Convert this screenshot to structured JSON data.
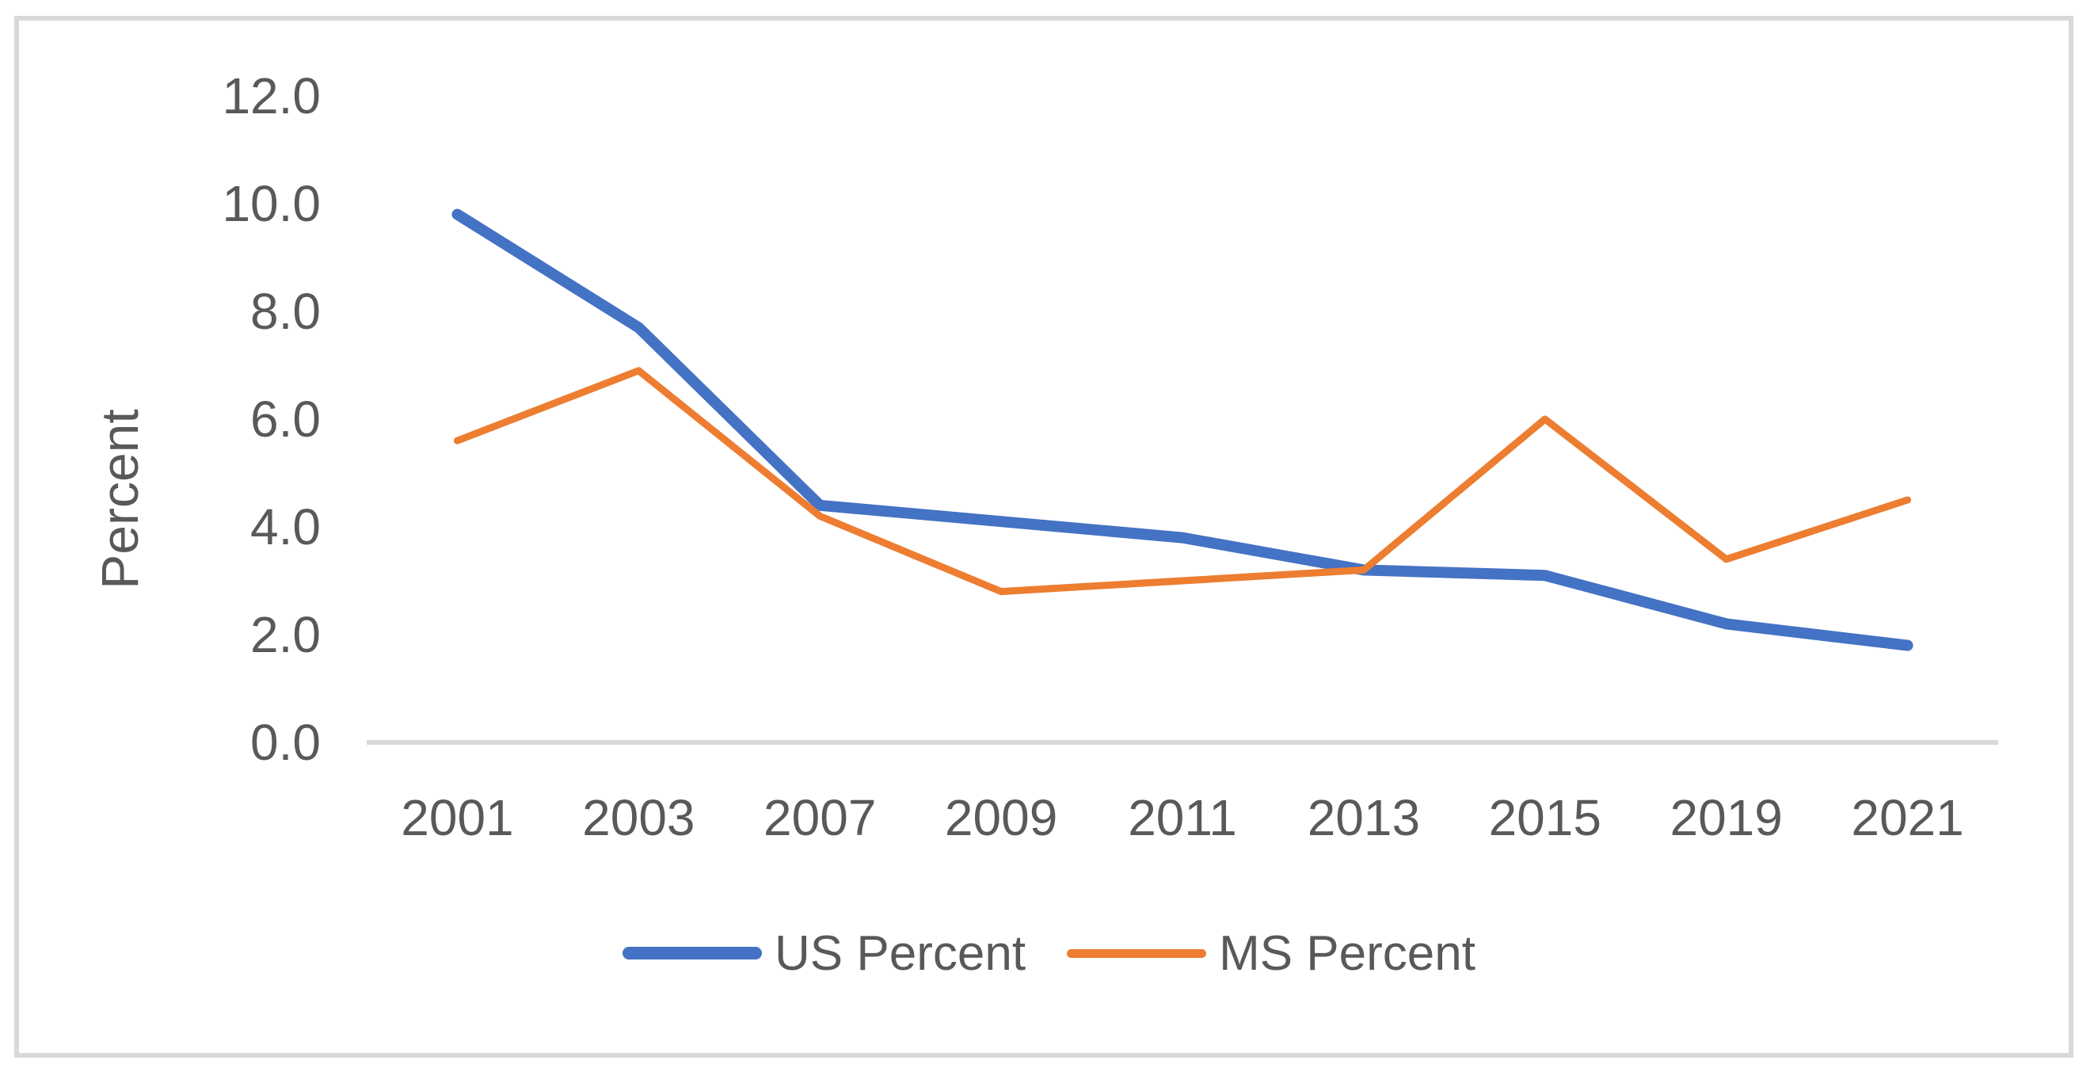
{
  "colors": {
    "background": "#FFFFFF",
    "frame_border": "#D9D9D9",
    "axis_line": "#D9D9D9",
    "text": "#595959",
    "us_series": "#4472C4",
    "ms_series": "#ED7D31"
  },
  "chart_data": {
    "type": "line",
    "title": "",
    "xlabel": "",
    "ylabel": "Percent",
    "categories": [
      "2001",
      "2003",
      "2007",
      "2009",
      "2011",
      "2013",
      "2015",
      "2019",
      "2021"
    ],
    "series": [
      {
        "name": "US Percent",
        "color": "#4472C4",
        "stroke_width": 14,
        "values": [
          9.8,
          7.7,
          4.4,
          4.1,
          3.8,
          3.2,
          3.1,
          2.2,
          1.8
        ]
      },
      {
        "name": "MS Percent",
        "color": "#ED7D31",
        "stroke_width": 9,
        "values": [
          5.6,
          6.9,
          4.2,
          2.8,
          3.0,
          3.2,
          6.0,
          3.4,
          4.5
        ]
      }
    ],
    "y_axis": {
      "min": 0,
      "max": 12,
      "step": 2,
      "tick_labels": [
        "0.0",
        "2.0",
        "4.0",
        "6.0",
        "8.0",
        "10.0",
        "12.0"
      ]
    },
    "grid": "off",
    "legend_position": "bottom"
  }
}
